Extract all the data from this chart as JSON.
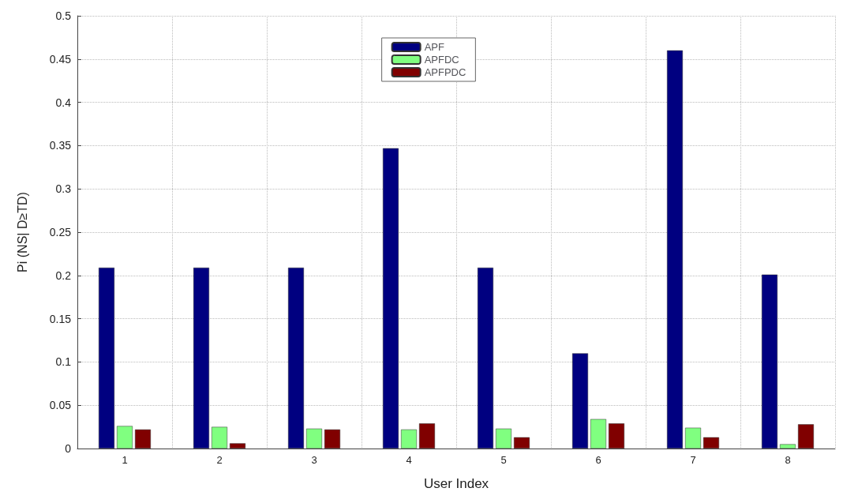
{
  "chart_data": {
    "type": "bar",
    "xlabel": "User Index",
    "ylabel": "Pi (NS| D≥TD)",
    "categories": [
      "1",
      "2",
      "3",
      "4",
      "5",
      "6",
      "7",
      "8"
    ],
    "series": [
      {
        "name": "APF",
        "color": "#000080",
        "values": [
          0.209,
          0.209,
          0.209,
          0.347,
          0.209,
          0.11,
          0.46,
          0.201
        ]
      },
      {
        "name": "APFDC",
        "color": "#80ff80",
        "values": [
          0.026,
          0.025,
          0.023,
          0.022,
          0.023,
          0.034,
          0.024,
          0.005
        ]
      },
      {
        "name": "APFPDC",
        "color": "#800000",
        "values": [
          0.022,
          0.006,
          0.022,
          0.029,
          0.013,
          0.029,
          0.013,
          0.028
        ]
      }
    ],
    "ylim": [
      0,
      0.5
    ],
    "yticks": [
      0,
      0.05,
      0.1,
      0.15,
      0.2,
      0.25,
      0.3,
      0.35,
      0.4,
      0.45,
      0.5
    ],
    "grid": true,
    "legend": "top"
  }
}
